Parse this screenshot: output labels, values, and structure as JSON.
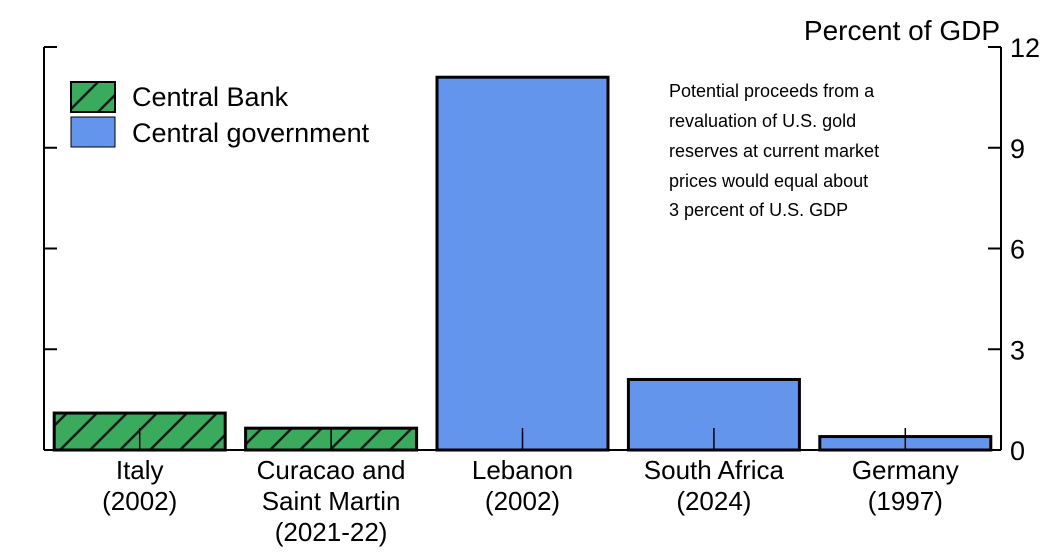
{
  "chart_data": {
    "type": "bar",
    "ylabel": "Percent of GDP",
    "ylim": [
      0,
      12
    ],
    "yticks": [
      "0",
      "3",
      "6",
      "9",
      "12"
    ],
    "categories": [
      [
        "Italy",
        "(2002)"
      ],
      [
        "Curacao and",
        "Saint Martin",
        "(2021-22)"
      ],
      [
        "Lebanon",
        "(2002)"
      ],
      [
        "South Africa",
        "(2024)"
      ],
      [
        "Germany",
        "(1997)"
      ]
    ],
    "series": [
      {
        "name": "Central Bank",
        "color": "#3aaa5c",
        "pattern": "hatched",
        "values": [
          1.1,
          0.65,
          null,
          null,
          null
        ]
      },
      {
        "name": "Central government",
        "color": "#6495ed",
        "pattern": "solid",
        "values": [
          null,
          null,
          11.1,
          2.1,
          0.4
        ]
      }
    ],
    "legend_position": "top-left",
    "grid": false,
    "annotation": [
      "Potential proceeds from a",
      "revaluation of U.S. gold",
      "reserves at current market",
      "prices would equal about",
      "3 percent of U.S. GDP"
    ]
  }
}
